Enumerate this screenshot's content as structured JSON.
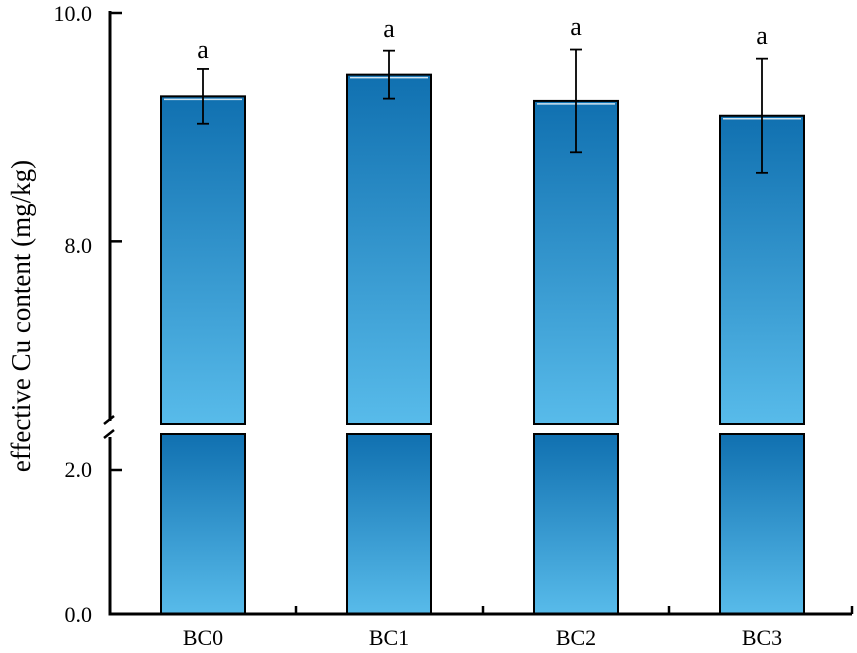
{
  "chart_data": {
    "type": "bar",
    "categories": [
      "BC0",
      "BC1",
      "BC2",
      "BC3"
    ],
    "values": [
      9.27,
      9.46,
      9.23,
      9.1
    ],
    "error": [
      0.24,
      0.21,
      0.45,
      0.5
    ],
    "significance": [
      "a",
      "a",
      "a",
      "a"
    ],
    "ylabel": "effective Cu content (mg/kg)",
    "xlabel": "",
    "y_ticks": [
      "0.0",
      "2.0",
      "8.0",
      "10.0"
    ],
    "y_break": {
      "lower_range": [
        0,
        2.5
      ],
      "upper_range": [
        6.4,
        10.0
      ]
    },
    "legend": "none",
    "grid": false,
    "colors": {
      "bar_top": "#1070b0",
      "bar_bottom": "#58bbea",
      "axis": "#000000"
    }
  }
}
